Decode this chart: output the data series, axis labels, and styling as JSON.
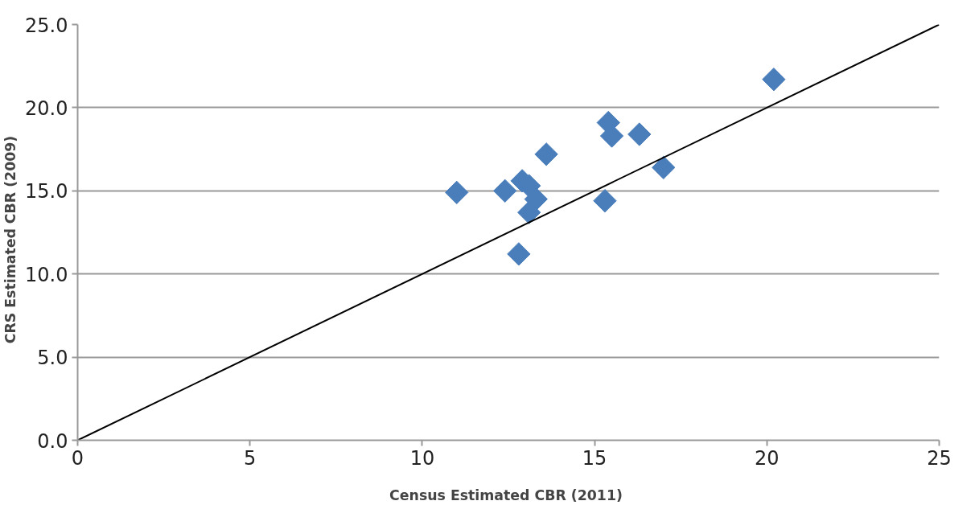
{
  "chart_data": {
    "type": "scatter",
    "xlabel": "Census  Estimated CBR (2011)",
    "ylabel": "CRS  Estimated  CBR  (2009)",
    "xlim": [
      0,
      25
    ],
    "xticks": [
      0,
      5,
      10,
      15,
      20,
      25
    ],
    "ylim": [
      0,
      25
    ],
    "yticks": [
      {
        "value": 0,
        "label": "0.0"
      },
      {
        "value": 5,
        "label": "5.0"
      },
      {
        "value": 10,
        "label": "10.0"
      },
      {
        "value": 15,
        "label": "15.0"
      },
      {
        "value": 20,
        "label": "20.0"
      },
      {
        "value": 25,
        "label": "25.0"
      }
    ],
    "grid": "y",
    "marker": "diamond",
    "series": [
      {
        "color": "#4a7ebb",
        "x": [
          11.0,
          12.4,
          12.9,
          13.1,
          13.3,
          13.1,
          12.8,
          13.6,
          15.4,
          15.5,
          16.3,
          17.0,
          15.3,
          20.2
        ],
        "values": [
          14.9,
          15.0,
          15.6,
          15.3,
          14.5,
          13.7,
          11.2,
          17.2,
          19.1,
          18.3,
          18.4,
          16.4,
          14.4,
          21.7
        ]
      },
      {
        "type": "line",
        "marker": "none",
        "color": "#000000",
        "x": [
          0,
          25
        ],
        "values": [
          0,
          25
        ]
      }
    ]
  }
}
